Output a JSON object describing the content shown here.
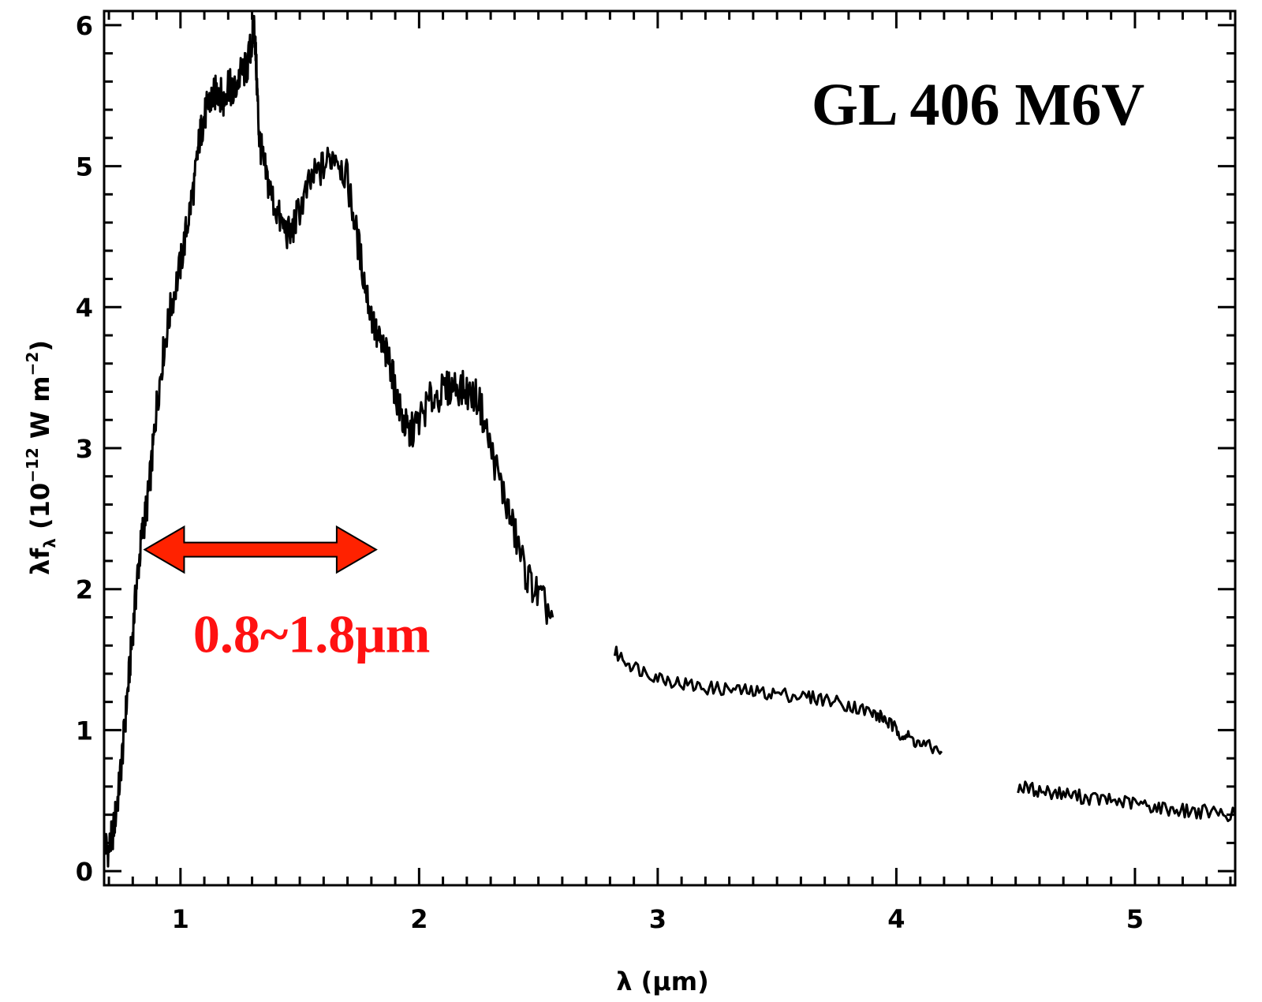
{
  "chart_data": {
    "type": "line",
    "title": "GL 406 M6V",
    "xlabel": "λ (μm)",
    "ylabel": {
      "prefix": "λf",
      "prefix_sub": "λ",
      "open": " (10",
      "exp": "−12",
      "mid": " W m",
      "exp2": "−2",
      "close": ")"
    },
    "xlim": [
      0.68,
      5.42
    ],
    "ylim": [
      -0.1,
      6.1
    ],
    "x_ticks": [
      1,
      2,
      3,
      4,
      5
    ],
    "x_tick_labels": [
      "1",
      "2",
      "3",
      "4",
      "5"
    ],
    "y_ticks": [
      0,
      1,
      2,
      3,
      4,
      5,
      6
    ],
    "y_tick_labels": [
      "0",
      "1",
      "2",
      "3",
      "4",
      "5",
      "6"
    ],
    "grid": false,
    "color": "#000000",
    "series": [
      {
        "segment": "0.68–2.56 μm",
        "x": [
          0.68,
          0.7,
          0.72,
          0.74,
          0.76,
          0.78,
          0.8,
          0.82,
          0.84,
          0.86,
          0.88,
          0.9,
          0.93,
          0.96,
          1.0,
          1.03,
          1.06,
          1.08,
          1.1,
          1.12,
          1.14,
          1.16,
          1.18,
          1.2,
          1.22,
          1.25,
          1.28,
          1.3,
          1.31,
          1.32,
          1.33,
          1.35,
          1.38,
          1.42,
          1.46,
          1.5,
          1.55,
          1.6,
          1.65,
          1.7,
          1.74,
          1.78,
          1.82,
          1.85,
          1.88,
          1.9,
          1.93,
          1.96,
          2.0,
          2.05,
          2.1,
          2.15,
          2.2,
          2.25,
          2.3,
          2.35,
          2.4,
          2.45,
          2.5,
          2.56
        ],
        "y": [
          0.2,
          0.15,
          0.3,
          0.55,
          0.9,
          1.3,
          1.7,
          2.1,
          2.4,
          2.6,
          2.9,
          3.3,
          3.7,
          4.0,
          4.3,
          4.6,
          4.9,
          5.2,
          5.35,
          5.45,
          5.5,
          5.55,
          5.45,
          5.6,
          5.5,
          5.65,
          5.7,
          5.9,
          6.0,
          5.6,
          5.2,
          5.0,
          4.8,
          4.6,
          4.5,
          4.7,
          4.9,
          5.0,
          5.1,
          4.9,
          4.5,
          4.1,
          3.8,
          3.7,
          3.6,
          3.4,
          3.2,
          3.1,
          3.2,
          3.35,
          3.4,
          3.45,
          3.4,
          3.35,
          3.0,
          2.7,
          2.4,
          2.1,
          1.95,
          1.8
        ]
      },
      {
        "segment": "2.82–4.19 μm",
        "x": [
          2.82,
          2.9,
          3.0,
          3.1,
          3.2,
          3.3,
          3.4,
          3.5,
          3.6,
          3.7,
          3.8,
          3.9,
          3.95,
          4.0,
          4.05,
          4.1,
          4.19
        ],
        "y": [
          1.55,
          1.45,
          1.38,
          1.33,
          1.3,
          1.29,
          1.27,
          1.26,
          1.24,
          1.22,
          1.18,
          1.12,
          1.08,
          1.0,
          0.95,
          0.9,
          0.85
        ]
      },
      {
        "segment": "4.51–5.42 μm",
        "x": [
          4.51,
          4.6,
          4.7,
          4.8,
          4.9,
          5.0,
          5.1,
          5.2,
          5.3,
          5.42
        ],
        "y": [
          0.6,
          0.57,
          0.55,
          0.52,
          0.5,
          0.48,
          0.45,
          0.43,
          0.42,
          0.4
        ]
      }
    ],
    "annotation": {
      "label": "0.8~1.8μm",
      "x_start": 0.85,
      "x_end": 1.82,
      "y": 2.28,
      "color": "#ff2200",
      "text_color": "#ff1111"
    }
  }
}
